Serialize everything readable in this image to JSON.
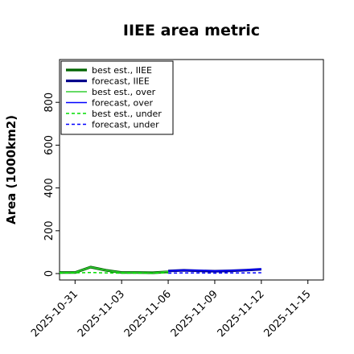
{
  "chart_data": {
    "type": "line",
    "title": "IIEE area metric",
    "xlabel": "",
    "ylabel": "Area (1000km2)",
    "xlim": [
      "2025-10-30",
      "2025-11-16"
    ],
    "ylim": [
      -30,
      1000
    ],
    "xticks": [
      "2025-10-31",
      "2025-11-03",
      "2025-11-06",
      "2025-11-09",
      "2025-11-12",
      "2025-11-15"
    ],
    "xtick_colors": [
      "#000000",
      "#000000",
      "#228B22",
      "#000000",
      "#000000",
      "#000000"
    ],
    "yticks": [
      0,
      200,
      400,
      600,
      800
    ],
    "grid": false,
    "legend_position": "upper-left",
    "series": [
      {
        "name": "best est., IIEE",
        "color": "#006400",
        "style": "solid-thick",
        "x": [
          "2025-10-30",
          "2025-10-31",
          "2025-11-01",
          "2025-11-02",
          "2025-11-03",
          "2025-11-04",
          "2025-11-05",
          "2025-11-06"
        ],
        "y": [
          5,
          5,
          30,
          15,
          5,
          5,
          4,
          8
        ]
      },
      {
        "name": "forecast, IIEE",
        "color": "#00008B",
        "style": "solid-thick",
        "x": [
          "2025-11-06",
          "2025-11-07",
          "2025-11-08",
          "2025-11-09",
          "2025-11-10",
          "2025-11-11",
          "2025-11-12"
        ],
        "y": [
          12,
          15,
          13,
          11,
          13,
          16,
          20
        ]
      },
      {
        "name": "best est., over",
        "color": "#32CD32",
        "style": "solid",
        "x": [
          "2025-10-30",
          "2025-10-31",
          "2025-11-01",
          "2025-11-02",
          "2025-11-03",
          "2025-11-04",
          "2025-11-05",
          "2025-11-06"
        ],
        "y": [
          5,
          5,
          30,
          15,
          5,
          5,
          3,
          10
        ]
      },
      {
        "name": "forecast, over",
        "color": "#0000FF",
        "style": "solid",
        "x": [
          "2025-11-06",
          "2025-11-07",
          "2025-11-08",
          "2025-11-09",
          "2025-11-10",
          "2025-11-11",
          "2025-11-12"
        ],
        "y": [
          12,
          16,
          15,
          12,
          14,
          17,
          22
        ]
      },
      {
        "name": "best est., under",
        "color": "#00DD00",
        "style": "dashed",
        "x": [
          "2025-10-30",
          "2025-10-31",
          "2025-11-01",
          "2025-11-02",
          "2025-11-03",
          "2025-11-04",
          "2025-11-05",
          "2025-11-06"
        ],
        "y": [
          2,
          3,
          5,
          3,
          2,
          2,
          2,
          3
        ]
      },
      {
        "name": "forecast, under",
        "color": "#0000FF",
        "style": "dashed",
        "x": [
          "2025-11-06",
          "2025-11-07",
          "2025-11-08",
          "2025-11-09",
          "2025-11-10",
          "2025-11-11",
          "2025-11-12"
        ],
        "y": [
          2,
          3,
          3,
          2,
          3,
          3,
          4
        ]
      }
    ]
  }
}
